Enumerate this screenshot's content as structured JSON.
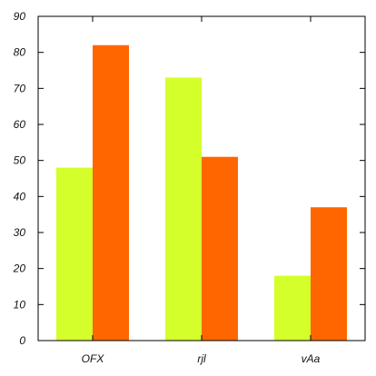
{
  "chart_data": {
    "type": "bar",
    "categories": [
      "OFX",
      "rjl",
      "vAa"
    ],
    "series": [
      {
        "values": [
          48,
          73,
          18
        ],
        "color": "#d4ff2a"
      },
      {
        "values": [
          82,
          51,
          37
        ],
        "color": "#ff6600"
      }
    ],
    "ylim": [
      0,
      90
    ],
    "yticks": [
      0,
      10,
      20,
      30,
      40,
      50,
      60,
      70,
      80,
      90
    ],
    "title": "",
    "xlabel": "",
    "ylabel": "",
    "grid": false,
    "legend": "none",
    "axis_color": "#000000"
  }
}
